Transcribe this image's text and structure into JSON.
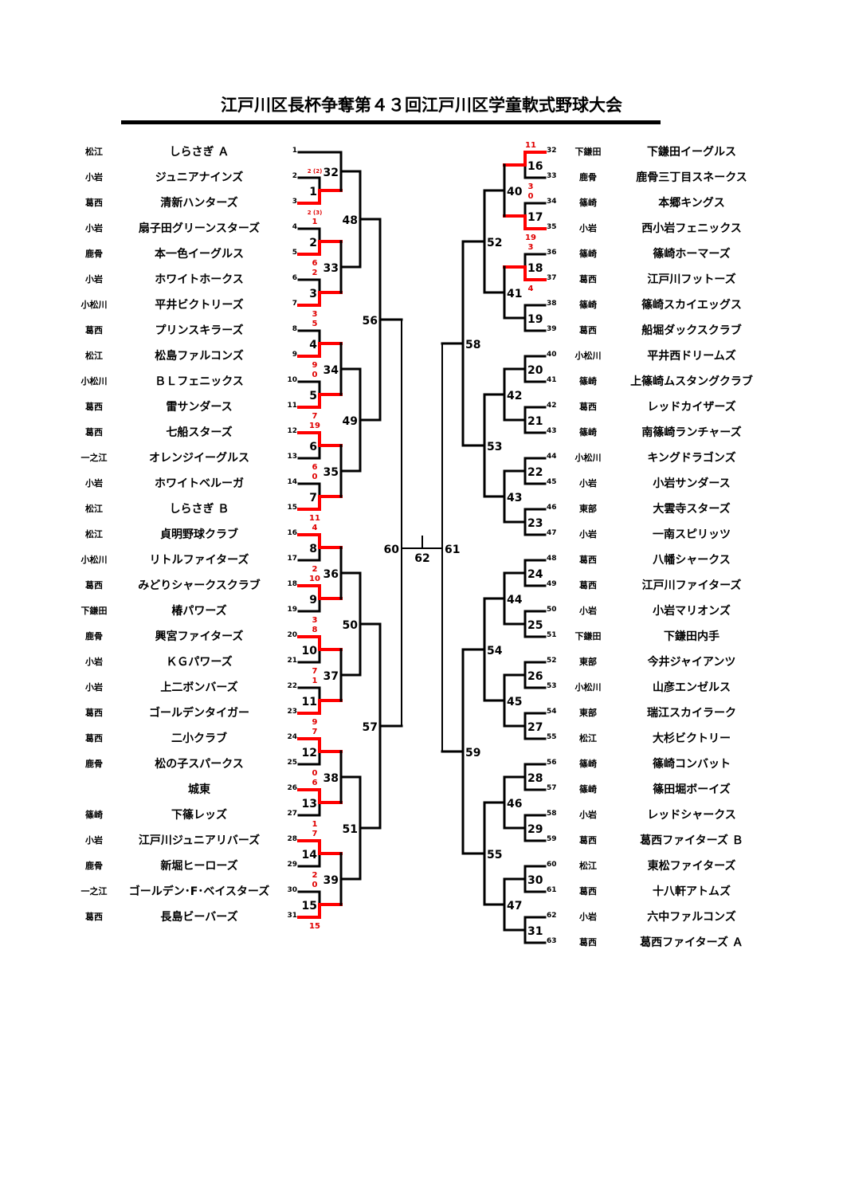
{
  "title": "江戸川区長杯争奪第４３回江戸川区学童軟式野球大会",
  "colors": {
    "winner": "#ff0000",
    "line": "#000000",
    "score": "#e00000"
  },
  "left_teams": [
    {
      "seed": "1",
      "region": "松江",
      "name": "しらさぎ Ａ"
    },
    {
      "seed": "2",
      "region": "小岩",
      "name": "ジュニアナインズ"
    },
    {
      "seed": "3",
      "region": "葛西",
      "name": "清新ハンターズ"
    },
    {
      "seed": "4",
      "region": "小岩",
      "name": "扇子田グリーンスターズ"
    },
    {
      "seed": "5",
      "region": "鹿骨",
      "name": "本一色イーグルス"
    },
    {
      "seed": "6",
      "region": "小岩",
      "name": "ホワイトホークス"
    },
    {
      "seed": "7",
      "region": "小松川",
      "name": "平井ビクトリーズ"
    },
    {
      "seed": "8",
      "region": "葛西",
      "name": "プリンスキラーズ"
    },
    {
      "seed": "9",
      "region": "松江",
      "name": "松島ファルコンズ"
    },
    {
      "seed": "10",
      "region": "小松川",
      "name": "ＢＬフェニックス"
    },
    {
      "seed": "11",
      "region": "葛西",
      "name": "雷サンダース"
    },
    {
      "seed": "12",
      "region": "葛西",
      "name": "七船スターズ"
    },
    {
      "seed": "13",
      "region": "一之江",
      "name": "オレンジイーグルス"
    },
    {
      "seed": "14",
      "region": "小岩",
      "name": "ホワイトベルーガ"
    },
    {
      "seed": "15",
      "region": "松江",
      "name": "しらさぎ Ｂ"
    },
    {
      "seed": "16",
      "region": "松江",
      "name": "貞明野球クラブ"
    },
    {
      "seed": "17",
      "region": "小松川",
      "name": "リトルファイターズ"
    },
    {
      "seed": "18",
      "region": "葛西",
      "name": "みどりシャークスクラブ"
    },
    {
      "seed": "19",
      "region": "下鎌田",
      "name": "椿パワーズ"
    },
    {
      "seed": "20",
      "region": "鹿骨",
      "name": "興宮ファイターズ"
    },
    {
      "seed": "21",
      "region": "小岩",
      "name": "ＫＧパワーズ"
    },
    {
      "seed": "22",
      "region": "小岩",
      "name": "上二ボンバーズ"
    },
    {
      "seed": "23",
      "region": "葛西",
      "name": "ゴールデンタイガー"
    },
    {
      "seed": "24",
      "region": "葛西",
      "name": "二小クラブ"
    },
    {
      "seed": "25",
      "region": "鹿骨",
      "name": "松の子スパークス"
    },
    {
      "seed": "26",
      "region": "",
      "name": "城東"
    },
    {
      "seed": "27",
      "region": "篠崎",
      "name": "下篠レッズ"
    },
    {
      "seed": "28",
      "region": "小岩",
      "name": "江戸川ジュニアリバーズ"
    },
    {
      "seed": "29",
      "region": "鹿骨",
      "name": "新堀ヒーローズ"
    },
    {
      "seed": "30",
      "region": "一之江",
      "name": "ゴールデン･F･ベイスターズ"
    },
    {
      "seed": "31",
      "region": "葛西",
      "name": "長島ビーバーズ"
    }
  ],
  "right_teams": [
    {
      "seed": "32",
      "region": "下鎌田",
      "name": "下鎌田イーグルス"
    },
    {
      "seed": "33",
      "region": "鹿骨",
      "name": "鹿骨三丁目スネークス"
    },
    {
      "seed": "34",
      "region": "篠崎",
      "name": "本郷キングス"
    },
    {
      "seed": "35",
      "region": "小岩",
      "name": "西小岩フェニックス"
    },
    {
      "seed": "36",
      "region": "篠崎",
      "name": "篠崎ホーマーズ"
    },
    {
      "seed": "37",
      "region": "葛西",
      "name": "江戸川フットーズ"
    },
    {
      "seed": "38",
      "region": "篠崎",
      "name": "篠崎スカイエッグス"
    },
    {
      "seed": "39",
      "region": "葛西",
      "name": "船堀ダックスクラブ"
    },
    {
      "seed": "40",
      "region": "小松川",
      "name": "平井西ドリームズ"
    },
    {
      "seed": "41",
      "region": "篠崎",
      "name": "上篠崎ムスタングクラブ"
    },
    {
      "seed": "42",
      "region": "葛西",
      "name": "レッドカイザーズ"
    },
    {
      "seed": "43",
      "region": "篠崎",
      "name": "南篠崎ランチャーズ"
    },
    {
      "seed": "44",
      "region": "小松川",
      "name": "キングドラゴンズ"
    },
    {
      "seed": "45",
      "region": "小岩",
      "name": "小岩サンダース"
    },
    {
      "seed": "46",
      "region": "東部",
      "name": "大雲寺スターズ"
    },
    {
      "seed": "47",
      "region": "小岩",
      "name": "一南スピリッツ"
    },
    {
      "seed": "48",
      "region": "葛西",
      "name": "八幡シャークス"
    },
    {
      "seed": "49",
      "region": "葛西",
      "name": "江戸川ファイターズ"
    },
    {
      "seed": "50",
      "region": "小岩",
      "name": "小岩マリオンズ"
    },
    {
      "seed": "51",
      "region": "下鎌田",
      "name": "下鎌田内手"
    },
    {
      "seed": "52",
      "region": "東部",
      "name": "今井ジャイアンツ"
    },
    {
      "seed": "53",
      "region": "小松川",
      "name": "山彦エンゼルス"
    },
    {
      "seed": "54",
      "region": "東部",
      "name": "瑞江スカイラーク"
    },
    {
      "seed": "55",
      "region": "松江",
      "name": "大杉ビクトリー"
    },
    {
      "seed": "56",
      "region": "篠崎",
      "name": "篠崎コンバット"
    },
    {
      "seed": "57",
      "region": "篠崎",
      "name": "篠田堀ボーイズ"
    },
    {
      "seed": "58",
      "region": "小岩",
      "name": "レッドシャークス"
    },
    {
      "seed": "59",
      "region": "葛西",
      "name": "葛西ファイターズ Ｂ"
    },
    {
      "seed": "60",
      "region": "松江",
      "name": "東松ファイターズ"
    },
    {
      "seed": "61",
      "region": "葛西",
      "name": "十八軒アトムズ"
    },
    {
      "seed": "62",
      "region": "小岩",
      "name": "六中ファルコンズ"
    },
    {
      "seed": "63",
      "region": "葛西",
      "name": "葛西ファイターズ Ａ"
    }
  ],
  "match_labels": {
    "1": "1",
    "2": "2",
    "3": "3",
    "4": "4",
    "5": "5",
    "6": "6",
    "7": "7",
    "8": "8",
    "9": "9",
    "10": "10",
    "11": "11",
    "12": "12",
    "13": "13",
    "14": "14",
    "15": "15",
    "16": "16",
    "17": "17",
    "18": "18",
    "19": "19",
    "20": "20",
    "21": "21",
    "22": "22",
    "23": "23",
    "24": "24",
    "25": "25",
    "26": "26",
    "27": "27",
    "28": "28",
    "29": "29",
    "30": "30",
    "31": "31",
    "32": "32",
    "33": "33",
    "34": "34",
    "35": "35",
    "36": "36",
    "37": "37",
    "38": "38",
    "39": "39",
    "40": "40",
    "41": "41",
    "42": "42",
    "43": "43",
    "44": "44",
    "45": "45",
    "46": "46",
    "47": "47",
    "48": "48",
    "49": "49",
    "50": "50",
    "51": "51",
    "52": "52",
    "53": "53",
    "54": "54",
    "55": "55",
    "56": "56",
    "57": "57",
    "58": "58",
    "59": "59",
    "60": "60",
    "61": "61",
    "62": "62"
  },
  "results": {
    "1": {
      "top": "2 (2)",
      "bottom": "2 (3)",
      "winner": "bottom"
    },
    "2": {
      "top": "1",
      "bottom": "6",
      "winner": "bottom"
    },
    "3": {
      "top": "2",
      "bottom": "3",
      "winner": "bottom"
    },
    "4": {
      "top": "5",
      "bottom": "9",
      "winner": "bottom"
    },
    "5": {
      "top": "0",
      "bottom": "7",
      "winner": "bottom"
    },
    "6": {
      "top": "19",
      "bottom": "6",
      "winner": "top"
    },
    "7": {
      "top": "0",
      "bottom": "11",
      "winner": "bottom"
    },
    "8": {
      "top": "4",
      "bottom": "2",
      "winner": "top"
    },
    "9": {
      "top": "10",
      "bottom": "3",
      "winner": "top"
    },
    "10": {
      "top": "8",
      "bottom": "7",
      "winner": "top"
    },
    "11": {
      "top": "1",
      "bottom": "9",
      "winner": "bottom"
    },
    "12": {
      "top": "7",
      "bottom": "0",
      "winner": "top"
    },
    "13": {
      "top": "6",
      "bottom": "1",
      "winner": "top"
    },
    "14": {
      "top": "7",
      "bottom": "2",
      "winner": "top"
    },
    "15": {
      "top": "0",
      "bottom": "15",
      "winner": "bottom"
    },
    "16": {
      "top": "11",
      "bottom": "3",
      "winner": "top"
    },
    "17": {
      "top": "0",
      "bottom": "19",
      "winner": "bottom"
    },
    "18": {
      "top": "3",
      "bottom": "4",
      "winner": "bottom"
    }
  }
}
